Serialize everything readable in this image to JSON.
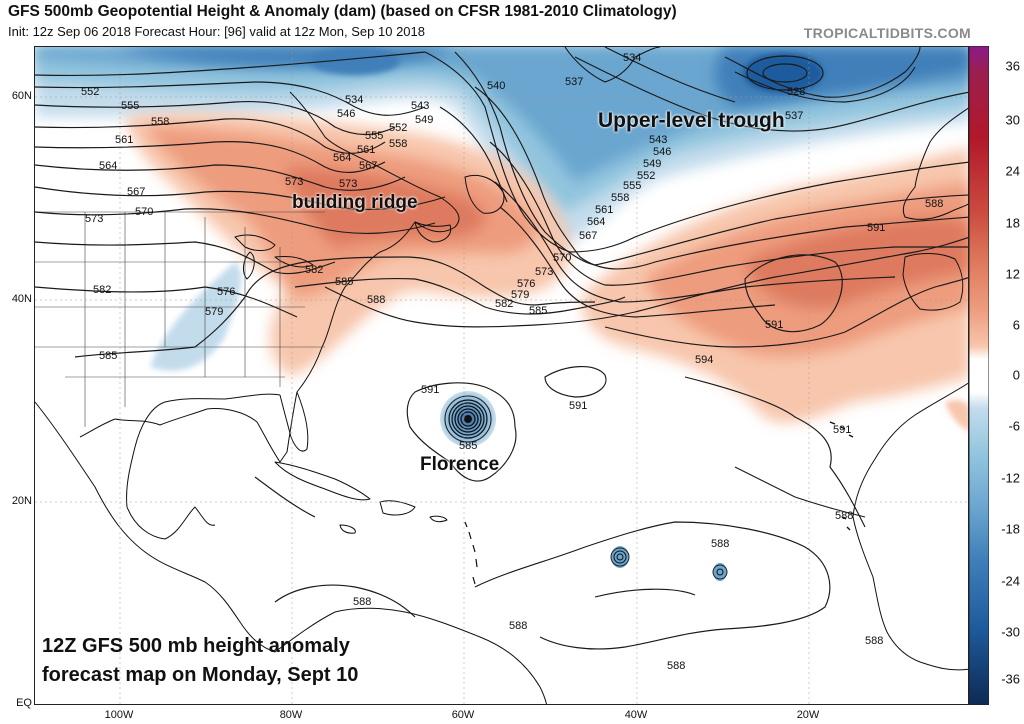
{
  "header": {
    "title": "GFS 500mb Geopotential Height & Anomaly (dam) (based on CFSR 1981-2010 Climatology)",
    "subtitle": "Init: 12z Sep 06 2018   Forecast Hour: [96]   valid at 12z Mon, Sep 10 2018",
    "brand": "TROPICALTIDBITS.COM"
  },
  "colorbar": {
    "ticks": [
      "36",
      "30",
      "24",
      "18",
      "12",
      "6",
      "0",
      "-6",
      "-12",
      "-18",
      "-24",
      "-30",
      "-36"
    ],
    "colors": [
      "#8a1a8c",
      "#b2182b",
      "#cb4a3e",
      "#de7a5e",
      "#ee9c7e",
      "#f7c6ac",
      "#ffffff",
      "#c3dcec",
      "#92c5de",
      "#6ba6cf",
      "#3f7fb9",
      "#1f5c9e",
      "#12386b"
    ]
  },
  "axes": {
    "lat": [
      "60N",
      "40N",
      "20N",
      "EQ"
    ],
    "lon": [
      "100W",
      "80W",
      "60W",
      "40W",
      "20W"
    ]
  },
  "annotations": {
    "ridge": "building ridge",
    "trough": "Upper-level trough",
    "storm": "Florence",
    "caption_line1": "12Z GFS 500 mb height anomaly",
    "caption_line2": "forecast map on Monday, Sept 10"
  },
  "contour_labels": [
    "552",
    "555",
    "561",
    "564",
    "567",
    "573",
    "570",
    "573",
    "582",
    "576",
    "579",
    "585",
    "558",
    "534",
    "546",
    "552",
    "555",
    "561",
    "564",
    "567",
    "543",
    "549",
    "558",
    "573",
    "582",
    "585",
    "588",
    "540",
    "537",
    "534",
    "528",
    "537",
    "543",
    "546",
    "549",
    "552",
    "555",
    "558",
    "561",
    "564",
    "567",
    "570",
    "573",
    "576",
    "579",
    "582",
    "585",
    "588",
    "591",
    "591",
    "594",
    "591",
    "591",
    "588",
    "585",
    "591",
    "588",
    "588",
    "588",
    "588",
    "588"
  ]
}
